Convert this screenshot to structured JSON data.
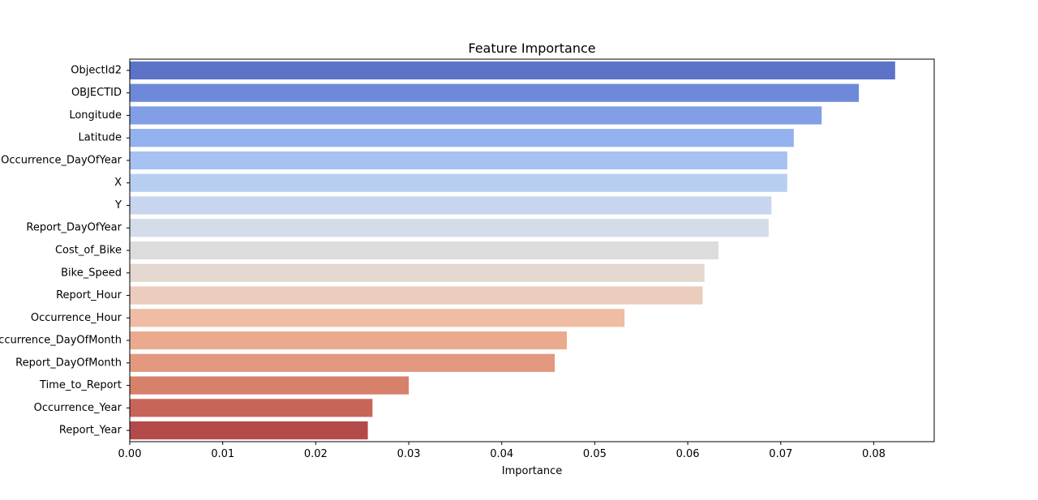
{
  "chart_data": {
    "type": "bar",
    "orientation": "horizontal",
    "title": "Feature Importance",
    "xlabel": "Importance",
    "ylabel": "",
    "xlim": [
      0.0,
      0.0865
    ],
    "x_ticks": [
      0.0,
      0.01,
      0.02,
      0.03,
      0.04,
      0.05,
      0.06,
      0.07,
      0.08
    ],
    "x_tick_labels": [
      "0.00",
      "0.01",
      "0.02",
      "0.03",
      "0.04",
      "0.05",
      "0.06",
      "0.07",
      "0.08"
    ],
    "grid": false,
    "legend": "none",
    "categories": [
      "ObjectId2",
      "OBJECTID",
      "Longitude",
      "Latitude",
      "Occurrence_DayOfYear",
      "X",
      "Y",
      "Report_DayOfYear",
      "Cost_of_Bike",
      "Bike_Speed",
      "Report_Hour",
      "Occurrence_Hour",
      "Occurrence_DayOfMonth",
      "Report_DayOfMonth",
      "Time_to_Report",
      "Occurrence_Year",
      "Report_Year"
    ],
    "values": [
      0.0823,
      0.0784,
      0.0744,
      0.0714,
      0.0707,
      0.0707,
      0.069,
      0.0687,
      0.0633,
      0.0618,
      0.0616,
      0.0532,
      0.047,
      0.0457,
      0.03,
      0.0261,
      0.0256
    ],
    "colors": [
      "#5d73c8",
      "#6e89d9",
      "#819ee6",
      "#93b1ee",
      "#a6c1f2",
      "#b8cef1",
      "#c7d5ef",
      "#d3dce8",
      "#dcdcdc",
      "#e5d8d1",
      "#ecccbc",
      "#eebda4",
      "#ebaa8e",
      "#e39880",
      "#d7806a",
      "#c86559",
      "#b4494a"
    ]
  }
}
